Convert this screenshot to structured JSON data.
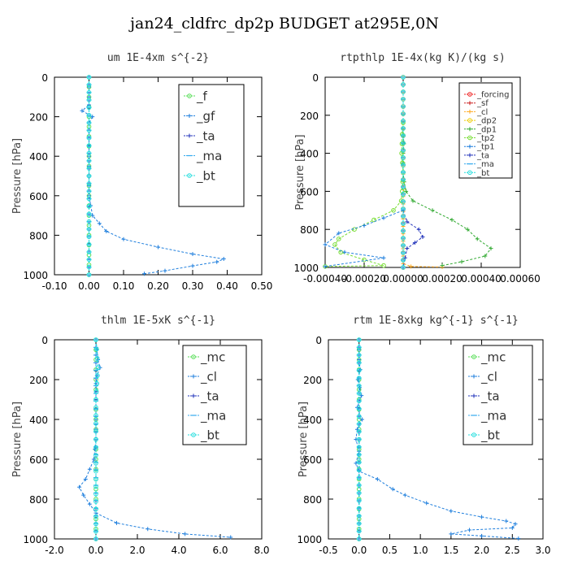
{
  "title": "jan24_cldfrc_dp2p  BUDGET at295E,0N",
  "chart_data": [
    {
      "type": "line",
      "title": "um  1E-4xm s^{-2}",
      "ylabel": "Pressure [hPa]",
      "xlim": [
        -0.1,
        0.5
      ],
      "ylim": [
        1000,
        0
      ],
      "xticks": [
        "-0.10",
        "0.00",
        "0.10",
        "0.20",
        "0.30",
        "0.40",
        "0.50"
      ],
      "xtick_values": [
        -0.1,
        0,
        0.1,
        0.2,
        0.3,
        0.4,
        0.5
      ],
      "yticks": [
        "0",
        "200",
        "400",
        "600",
        "800",
        "1000"
      ],
      "ytick_values": [
        0,
        200,
        400,
        600,
        800,
        1000
      ],
      "legend": "top-right",
      "legend_font": 15,
      "series": [
        {
          "name": "_f",
          "color": "#55dd55",
          "marker": "o",
          "points": [
            [
              0,
              0
            ],
            [
              0,
              100
            ],
            [
              0,
              200
            ],
            [
              0,
              300
            ],
            [
              0,
              400
            ],
            [
              0,
              500
            ],
            [
              0,
              600
            ],
            [
              0,
              700
            ],
            [
              0,
              800
            ],
            [
              0,
              900
            ],
            [
              0,
              1000
            ]
          ]
        },
        {
          "name": "_gf",
          "color": "#1f7fdd",
          "marker": "+",
          "points": [
            [
              0,
              0
            ],
            [
              0,
              100
            ],
            [
              0,
              140
            ],
            [
              -0.02,
              170
            ],
            [
              0.01,
              200
            ],
            [
              0,
              230
            ],
            [
              0,
              300
            ],
            [
              0,
              400
            ],
            [
              0,
              500
            ],
            [
              0,
              600
            ],
            [
              0.01,
              700
            ],
            [
              0.05,
              780
            ],
            [
              0.1,
              820
            ],
            [
              0.2,
              860
            ],
            [
              0.3,
              895
            ],
            [
              0.39,
              920
            ],
            [
              0.37,
              935
            ],
            [
              0.3,
              955
            ],
            [
              0.22,
              980
            ],
            [
              0.16,
              995
            ]
          ]
        },
        {
          "name": "_ta",
          "color": "#2233bb",
          "marker": "+",
          "points": [
            [
              0,
              0
            ],
            [
              0,
              500
            ],
            [
              0,
              1000
            ]
          ]
        },
        {
          "name": "_ma",
          "color": "#33aaee",
          "marker": "-",
          "points": [
            [
              0,
              0
            ],
            [
              0,
              500
            ],
            [
              0,
              1000
            ]
          ]
        },
        {
          "name": "_bt",
          "color": "#22dddd",
          "marker": "o",
          "points": [
            [
              0,
              0
            ],
            [
              0,
              500
            ],
            [
              0,
              1000
            ]
          ]
        }
      ]
    },
    {
      "type": "line",
      "title": "rtpthlp  1E-4x(kg K)/(kg s)",
      "ylabel": "Pressure [hPa]",
      "xlim": [
        -0.0004,
        0.0006
      ],
      "ylim": [
        1000,
        0
      ],
      "xticks": [
        "-0.00040",
        "-0.00020",
        "0.00000",
        "0.00020",
        "0.00040",
        "0.00060"
      ],
      "xtick_values": [
        -0.0004,
        -0.0002,
        0,
        0.0002,
        0.0004,
        0.0006
      ],
      "yticks": [
        "0",
        "200",
        "400",
        "600",
        "800",
        "1000"
      ],
      "ytick_values": [
        0,
        200,
        400,
        600,
        800,
        1000
      ],
      "legend": "top-right",
      "legend_font": 10,
      "series": [
        {
          "name": "_forcing",
          "color": "#ee2222",
          "marker": "o",
          "points": [
            [
              0,
              0
            ],
            [
              0,
              500
            ],
            [
              0,
              1000
            ]
          ]
        },
        {
          "name": "_sf",
          "color": "#cc2222",
          "marker": "+",
          "points": [
            [
              0,
              0
            ],
            [
              0,
              500
            ],
            [
              0,
              1000
            ]
          ]
        },
        {
          "name": "_cl",
          "color": "#ffaa22",
          "marker": "+",
          "points": [
            [
              0,
              0
            ],
            [
              0,
              980
            ],
            [
              4e-05,
              995
            ],
            [
              0.0002,
              998
            ]
          ]
        },
        {
          "name": "_dp2",
          "color": "#eecc00",
          "marker": "o",
          "points": [
            [
              0,
              0
            ],
            [
              0,
              1000
            ]
          ]
        },
        {
          "name": "_dp1",
          "color": "#33aa33",
          "marker": "+",
          "points": [
            [
              0,
              240
            ],
            [
              0,
              300
            ],
            [
              4e-06,
              350
            ],
            [
              0,
              400
            ],
            [
              0,
              450
            ],
            [
              0,
              500
            ],
            [
              5e-06,
              550
            ],
            [
              1.5e-05,
              600
            ],
            [
              5e-05,
              650
            ],
            [
              0.00015,
              700
            ],
            [
              0.00025,
              750
            ],
            [
              0.00033,
              800
            ],
            [
              0.00038,
              850
            ],
            [
              0.00045,
              900
            ],
            [
              0.00042,
              940
            ],
            [
              0.0003,
              970
            ],
            [
              0.0002,
              990
            ]
          ]
        },
        {
          "name": "_tp2",
          "color": "#77dd33",
          "marker": "o",
          "points": [
            [
              0,
              240
            ],
            [
              -5e-06,
              300
            ],
            [
              -8e-06,
              400
            ],
            [
              0,
              500
            ],
            [
              -5e-06,
              600
            ],
            [
              -1e-05,
              650
            ],
            [
              -5e-05,
              700
            ],
            [
              -0.00015,
              750
            ],
            [
              -0.00025,
              800
            ],
            [
              -0.00033,
              850
            ],
            [
              -0.00035,
              880
            ],
            [
              -0.00032,
              920
            ],
            [
              -0.0002,
              960
            ],
            [
              -0.0001,
              990
            ],
            [
              -0.0004,
              995
            ]
          ]
        },
        {
          "name": "_tp1",
          "color": "#1f7fdd",
          "marker": "+",
          "points": [
            [
              0,
              700
            ],
            [
              -0.0001,
              740
            ],
            [
              -0.0002,
              780
            ],
            [
              -0.00033,
              820
            ],
            [
              -0.0004,
              880
            ],
            [
              -0.0003,
              920
            ],
            [
              -0.0001,
              950
            ],
            [
              -0.0004,
              995
            ]
          ]
        },
        {
          "name": "_ta",
          "color": "#2233bb",
          "marker": "+",
          "points": [
            [
              0,
              700
            ],
            [
              2e-05,
              760
            ],
            [
              8e-05,
              800
            ],
            [
              0.0001,
              840
            ],
            [
              6e-05,
              870
            ],
            [
              2e-05,
              900
            ],
            [
              0,
              1000
            ]
          ]
        },
        {
          "name": "_ma",
          "color": "#33aaee",
          "marker": "-",
          "points": [
            [
              0,
              0
            ],
            [
              0,
              1000
            ]
          ]
        },
        {
          "name": "_bt",
          "color": "#22dddd",
          "marker": "o",
          "points": [
            [
              0,
              0
            ],
            [
              0,
              1000
            ]
          ]
        }
      ]
    },
    {
      "type": "line",
      "title": "thlm  1E-5xK s^{-1}",
      "ylabel": "Pressure [hPa]",
      "xlim": [
        -2,
        8
      ],
      "ylim": [
        1000,
        0
      ],
      "xticks": [
        "-2.0",
        "0.0",
        "2.0",
        "4.0",
        "6.0",
        "8.0"
      ],
      "xtick_values": [
        -2,
        0,
        2,
        4,
        6,
        8
      ],
      "yticks": [
        "0",
        "200",
        "400",
        "600",
        "800",
        "1000"
      ],
      "ytick_values": [
        0,
        200,
        400,
        600,
        800,
        1000
      ],
      "legend": "top-right",
      "legend_font": 15,
      "series": [
        {
          "name": "_mc",
          "color": "#55dd55",
          "marker": "o",
          "points": [
            [
              0,
              0
            ],
            [
              0,
              100
            ],
            [
              0,
              200
            ],
            [
              0,
              300
            ],
            [
              0,
              400
            ],
            [
              0,
              500
            ],
            [
              0,
              600
            ],
            [
              0,
              700
            ],
            [
              0,
              800
            ],
            [
              0,
              900
            ],
            [
              0,
              1000
            ]
          ]
        },
        {
          "name": "_cl",
          "color": "#1f7fdd",
          "marker": "+",
          "points": [
            [
              0,
              0
            ],
            [
              0.1,
              100
            ],
            [
              0.2,
              140
            ],
            [
              0.05,
              180
            ],
            [
              0,
              220
            ],
            [
              0,
              300
            ],
            [
              0,
              400
            ],
            [
              0,
              500
            ],
            [
              -0.1,
              600
            ],
            [
              -0.5,
              700
            ],
            [
              -0.8,
              740
            ],
            [
              -0.6,
              780
            ],
            [
              0,
              870
            ],
            [
              1,
              920
            ],
            [
              2.5,
              950
            ],
            [
              4.3,
              975
            ],
            [
              6.5,
              992
            ]
          ]
        },
        {
          "name": "_ta",
          "color": "#2233bb",
          "marker": "+",
          "points": [
            [
              0,
              0
            ],
            [
              0,
              500
            ],
            [
              0,
              1000
            ]
          ]
        },
        {
          "name": "_ma",
          "color": "#33aaee",
          "marker": "-",
          "points": [
            [
              0,
              0
            ],
            [
              0,
              500
            ],
            [
              0,
              1000
            ]
          ]
        },
        {
          "name": "_bt",
          "color": "#22dddd",
          "marker": "o",
          "points": [
            [
              0,
              0
            ],
            [
              0.1,
              140
            ],
            [
              0,
              300
            ],
            [
              0,
              500
            ],
            [
              0,
              700
            ],
            [
              0,
              1000
            ]
          ]
        }
      ]
    },
    {
      "type": "line",
      "title": "rtm  1E-8xkg kg^{-1} s^{-1}",
      "ylabel": "Pressure [hPa]",
      "xlim": [
        -0.5,
        3
      ],
      "ylim": [
        1000,
        0
      ],
      "xticks": [
        "-0.5",
        "0.0",
        "0.5",
        "1.0",
        "1.5",
        "2.0",
        "2.5",
        "3.0"
      ],
      "xtick_values": [
        -0.5,
        0,
        0.5,
        1,
        1.5,
        2,
        2.5,
        3
      ],
      "yticks": [
        "0",
        "200",
        "400",
        "600",
        "800",
        "1000"
      ],
      "ytick_values": [
        0,
        200,
        400,
        600,
        800,
        1000
      ],
      "legend": "top-right",
      "legend_font": 15,
      "series": [
        {
          "name": "_mc",
          "color": "#55dd55",
          "marker": "o",
          "points": [
            [
              0,
              0
            ],
            [
              0,
              100
            ],
            [
              0,
              200
            ],
            [
              0,
              300
            ],
            [
              0,
              400
            ],
            [
              0,
              500
            ],
            [
              0,
              600
            ],
            [
              0,
              700
            ],
            [
              0,
              800
            ],
            [
              0,
              900
            ],
            [
              0,
              1000
            ]
          ]
        },
        {
          "name": "_cl",
          "color": "#1f7fdd",
          "marker": "+",
          "points": [
            [
              0,
              0
            ],
            [
              0,
              100
            ],
            [
              0.02,
              150
            ],
            [
              -0.02,
              200
            ],
            [
              0.04,
              280
            ],
            [
              -0.03,
              340
            ],
            [
              0.05,
              400
            ],
            [
              -0.03,
              450
            ],
            [
              -0.05,
              500
            ],
            [
              0,
              560
            ],
            [
              -0.05,
              620
            ],
            [
              0,
              660
            ],
            [
              0.3,
              700
            ],
            [
              0.55,
              750
            ],
            [
              0.75,
              780
            ],
            [
              1.1,
              820
            ],
            [
              1.5,
              860
            ],
            [
              2.0,
              890
            ],
            [
              2.4,
              910
            ],
            [
              2.55,
              925
            ],
            [
              2.5,
              945
            ],
            [
              1.8,
              955
            ],
            [
              1.5,
              975
            ],
            [
              2.0,
              985
            ],
            [
              2.6,
              998
            ]
          ]
        },
        {
          "name": "_ta",
          "color": "#2233bb",
          "marker": "+",
          "points": [
            [
              0,
              0
            ],
            [
              0,
              500
            ],
            [
              0,
              1000
            ]
          ]
        },
        {
          "name": "_ma",
          "color": "#33aaee",
          "marker": "-",
          "points": [
            [
              0,
              0
            ],
            [
              0,
              500
            ],
            [
              0,
              1000
            ]
          ]
        },
        {
          "name": "_bt",
          "color": "#22dddd",
          "marker": "o",
          "points": [
            [
              0,
              0
            ],
            [
              0,
              500
            ],
            [
              0,
              1000
            ]
          ]
        }
      ]
    }
  ]
}
